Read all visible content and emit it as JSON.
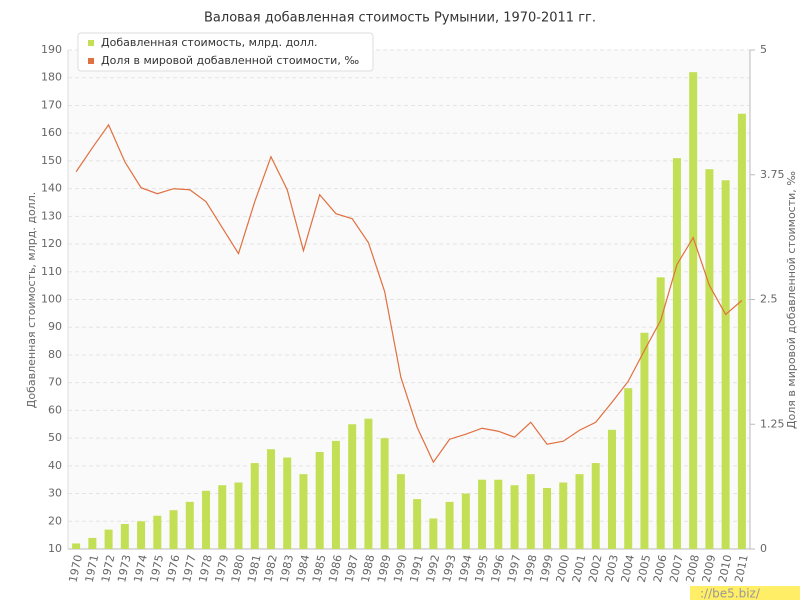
{
  "chart_data": {
    "type": "bar",
    "title": "Валовая добавленная стоимость Румынии, 1970-2011 гг.",
    "y_label": "Добавленная стоимость, млрд. долл.",
    "y2_label": "Доля в мировой добавленной стоимости, ‰",
    "categories": [
      "1970",
      "1971",
      "1972",
      "1973",
      "1974",
      "1975",
      "1976",
      "1977",
      "1978",
      "1979",
      "1980",
      "1981",
      "1982",
      "1983",
      "1984",
      "1985",
      "1986",
      "1987",
      "1988",
      "1989",
      "1990",
      "1991",
      "1992",
      "1993",
      "1994",
      "1995",
      "1996",
      "1997",
      "1998",
      "1999",
      "2000",
      "2001",
      "2002",
      "2003",
      "2004",
      "2005",
      "2006",
      "2007",
      "2008",
      "2009",
      "2010",
      "2011"
    ],
    "series": [
      {
        "name": "Добавленная стоимость, млрд. долл.",
        "type": "bar",
        "color": "#c3df55",
        "values": [
          12,
          14,
          17,
          19,
          20,
          22,
          24,
          27,
          31,
          33,
          34,
          41,
          46,
          43,
          37,
          45,
          49,
          55,
          57,
          50,
          37,
          28,
          21,
          27,
          30,
          35,
          35,
          33,
          37,
          32,
          34,
          37,
          41,
          53,
          68,
          88,
          108,
          151,
          182,
          147,
          143,
          167
        ]
      },
      {
        "name": "Доля в мировой добавленной стоимости, ‰",
        "type": "line",
        "axis": "y2",
        "color": "#e07040",
        "values": [
          3.78,
          4.02,
          4.25,
          3.88,
          3.62,
          3.56,
          3.61,
          3.6,
          3.48,
          3.22,
          2.96,
          3.48,
          3.93,
          3.6,
          2.99,
          3.55,
          3.36,
          3.31,
          3.07,
          2.58,
          1.72,
          1.22,
          0.87,
          1.1,
          1.15,
          1.21,
          1.18,
          1.12,
          1.27,
          1.05,
          1.08,
          1.19,
          1.27,
          1.47,
          1.68,
          1.99,
          2.29,
          2.85,
          3.12,
          2.64,
          2.35,
          2.49
        ]
      }
    ],
    "ylim": [
      10,
      190
    ],
    "yticks": [
      10,
      20,
      30,
      40,
      50,
      60,
      70,
      80,
      90,
      100,
      110,
      120,
      130,
      140,
      150,
      160,
      170,
      180,
      190
    ],
    "y2lim": [
      0,
      5
    ],
    "y2ticks": [
      0,
      1.25,
      2.5,
      3.75,
      5
    ],
    "grid": true,
    "legend": "top-left"
  },
  "watermark": "://be5.biz/"
}
